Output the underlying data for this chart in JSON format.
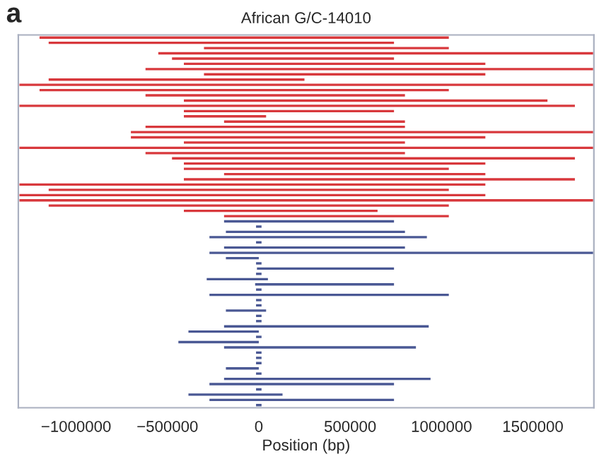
{
  "chart_data": {
    "type": "bar",
    "orientation": "horizontal",
    "title": "African G/C-14010",
    "xlabel": "Position (bp)",
    "annotations": [
      "a"
    ],
    "categories": [
      null,
      null,
      null,
      null,
      null,
      null,
      null,
      null,
      null,
      null,
      null,
      null,
      null,
      null,
      null,
      null,
      null,
      null,
      null,
      null,
      null,
      null,
      null,
      null,
      null,
      null,
      null,
      null,
      null,
      null,
      null,
      null,
      null,
      null,
      null,
      null,
      null,
      null,
      null,
      null,
      null,
      null,
      null,
      null,
      null,
      null,
      null,
      null,
      null,
      null,
      null,
      null,
      null,
      null,
      null,
      null,
      null,
      null,
      null,
      null,
      null,
      null,
      null,
      null,
      null,
      null,
      null,
      null,
      null,
      null,
      null
    ],
    "base": [
      -1200000,
      -1150000,
      -300000,
      -550000,
      -475000,
      -410000,
      -620000,
      -300000,
      -1150000,
      -1310000,
      -1200000,
      -620000,
      -410000,
      -1310000,
      -410000,
      -410000,
      -190000,
      -620000,
      -700000,
      -700000,
      -410000,
      -1310000,
      -620000,
      -475000,
      -410000,
      -410000,
      -190000,
      -410000,
      -1310000,
      -1150000,
      -1310000,
      -1310000,
      -1150000,
      -410000,
      -190000,
      -190000,
      -15000,
      -180000,
      -270000,
      -15000,
      -190000,
      -270000,
      -180000,
      -15000,
      -10000,
      -15000,
      -285000,
      -20000,
      -15000,
      -270000,
      -15000,
      -15000,
      -180000,
      -15000,
      -15000,
      -190000,
      -385000,
      -15000,
      -440000,
      -190000,
      -15000,
      -15000,
      -15000,
      -180000,
      -15000,
      -190000,
      -270000,
      -15000,
      -385000,
      -270000,
      -15000
    ],
    "values": [
      2240000,
      1890000,
      1340000,
      2380000,
      1215000,
      1650000,
      2450000,
      1540000,
      1400000,
      3140000,
      2240000,
      1420000,
      1990000,
      3040000,
      1150000,
      450000,
      990000,
      1420000,
      2530000,
      1940000,
      1210000,
      3140000,
      1420000,
      2205000,
      1650000,
      1450000,
      1430000,
      2140000,
      2550000,
      2190000,
      2550000,
      3140000,
      2190000,
      1060000,
      1230000,
      930000,
      30000,
      980000,
      1190000,
      30000,
      990000,
      2100000,
      180000,
      30000,
      750000,
      30000,
      335000,
      760000,
      30000,
      1310000,
      30000,
      30000,
      220000,
      30000,
      30000,
      1120000,
      385000,
      30000,
      440000,
      1050000,
      30000,
      30000,
      30000,
      180000,
      30000,
      1130000,
      1010000,
      30000,
      515000,
      1010000,
      30000
    ],
    "colors": [
      "#d8383c",
      "#d8383c",
      "#d8383c",
      "#d8383c",
      "#d8383c",
      "#d8383c",
      "#d8383c",
      "#d8383c",
      "#d8383c",
      "#d8383c",
      "#d8383c",
      "#d8383c",
      "#d8383c",
      "#d8383c",
      "#d8383c",
      "#d8383c",
      "#d8383c",
      "#d8383c",
      "#d8383c",
      "#d8383c",
      "#d8383c",
      "#d8383c",
      "#d8383c",
      "#d8383c",
      "#d8383c",
      "#d8383c",
      "#d8383c",
      "#d8383c",
      "#d8383c",
      "#d8383c",
      "#d8383c",
      "#d8383c",
      "#d8383c",
      "#d8383c",
      "#d8383c",
      "#4a5894",
      "#4a5894",
      "#4a5894",
      "#4a5894",
      "#4a5894",
      "#4a5894",
      "#4a5894",
      "#4a5894",
      "#4a5894",
      "#4a5894",
      "#4a5894",
      "#4a5894",
      "#4a5894",
      "#4a5894",
      "#4a5894",
      "#4a5894",
      "#4a5894",
      "#4a5894",
      "#4a5894",
      "#4a5894",
      "#4a5894",
      "#4a5894",
      "#4a5894",
      "#4a5894",
      "#4a5894",
      "#4a5894",
      "#4a5894",
      "#4a5894",
      "#4a5894",
      "#4a5894",
      "#4a5894",
      "#4a5894",
      "#4a5894",
      "#4a5894",
      "#4a5894",
      "#4a5894"
    ],
    "xlim": [
      -1316000,
      1834000
    ],
    "xticks": [
      {
        "value": -1000000,
        "label": "−1000000"
      },
      {
        "value": -500000,
        "label": "−500000"
      },
      0,
      500000,
      1000000,
      1500000
    ],
    "tick_labels": "x",
    "grid": false,
    "legend": false
  }
}
